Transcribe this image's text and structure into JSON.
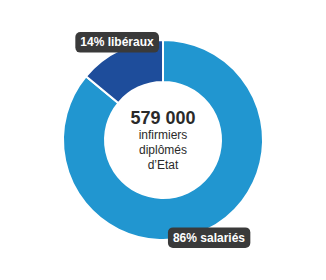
{
  "chart_data": {
    "type": "donut",
    "values": [
      86,
      14
    ],
    "value_labels": [
      "86% salariés",
      "14% libéraux"
    ],
    "colors": [
      "#2196d0",
      "#1e4d9b"
    ],
    "data_labels": true,
    "annotations": [
      "579 000",
      "infirmiers",
      "diplômés",
      "d’Etat"
    ]
  }
}
